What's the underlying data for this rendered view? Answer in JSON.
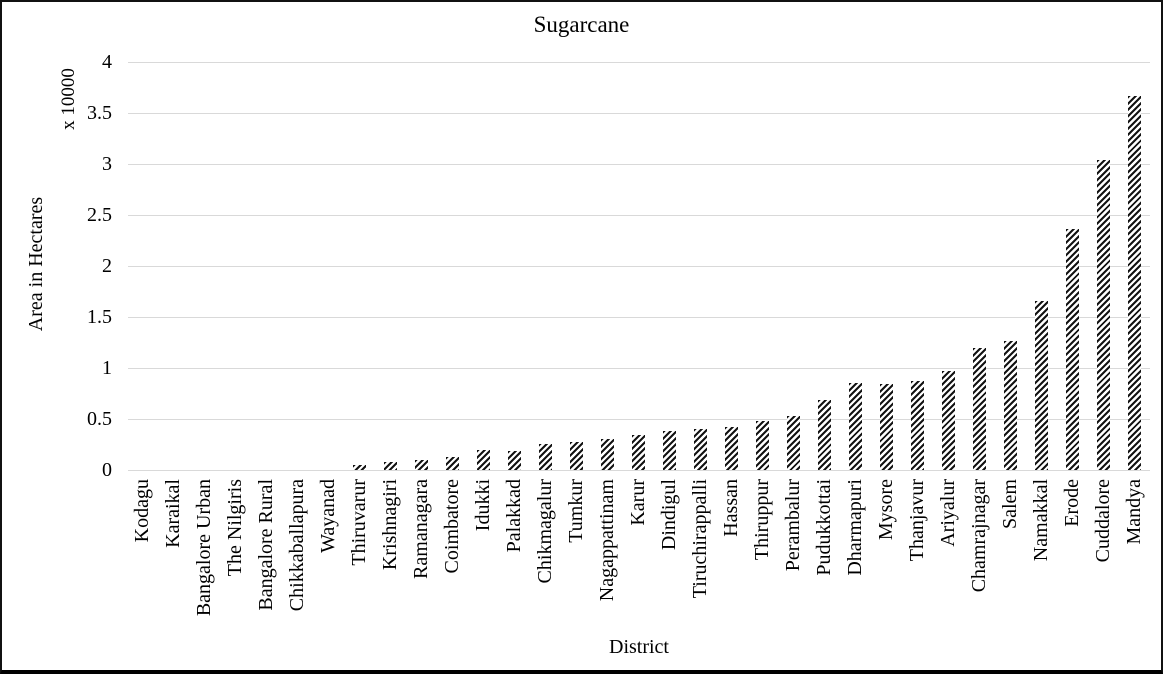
{
  "chart_data": {
    "type": "bar",
    "title": "Sugarcane",
    "xlabel": "District",
    "ylabel": "Area in Hectares",
    "y_multiplier_label": "x 10000",
    "ylim": [
      0,
      4
    ],
    "ytick_step": 0.5,
    "yticks": [
      "0",
      "0.5",
      "1",
      "1.5",
      "2",
      "2.5",
      "3",
      "3.5",
      "4"
    ],
    "grid": true,
    "legend_position": "none",
    "bar_style": "upward-diagonal-hatch",
    "categories": [
      "Kodagu",
      "Karaikal",
      "Bangalore Urban",
      "The Nilgiris",
      "Bangalore Rural",
      "Chikkaballapura",
      "Wayanad",
      "Thiruvarur",
      "Krishnagiri",
      "Ramanagara",
      "Coimbatore",
      "Idukki",
      "Palakkad",
      "Chikmagalur",
      "Tumkur",
      "Nagappattinam",
      "Karur",
      "Dindigul",
      "Tiruchirappalli",
      "Hassan",
      "Thiruppur",
      "Perambalur",
      "Pudukkottai",
      "Dharmapuri",
      "Mysore",
      "Thanjavur",
      "Ariyalur",
      "Chamrajnagar",
      "Salem",
      "Namakkal",
      "Erode",
      "Cuddalore",
      "Mandya"
    ],
    "values": [
      0,
      0,
      0,
      0,
      0,
      0,
      0,
      0.05,
      0.08,
      0.1,
      0.13,
      0.2,
      0.19,
      0.25,
      0.27,
      0.3,
      0.34,
      0.38,
      0.4,
      0.42,
      0.48,
      0.53,
      0.69,
      0.85,
      0.84,
      0.87,
      0.97,
      1.2,
      1.26,
      1.66,
      2.36,
      3.04,
      3.67
    ]
  },
  "colors": {
    "background": "#ffffff",
    "frame_border": "#000000",
    "gridline": "#d9d9d9",
    "hatch": "#141414",
    "text": "#000000"
  }
}
